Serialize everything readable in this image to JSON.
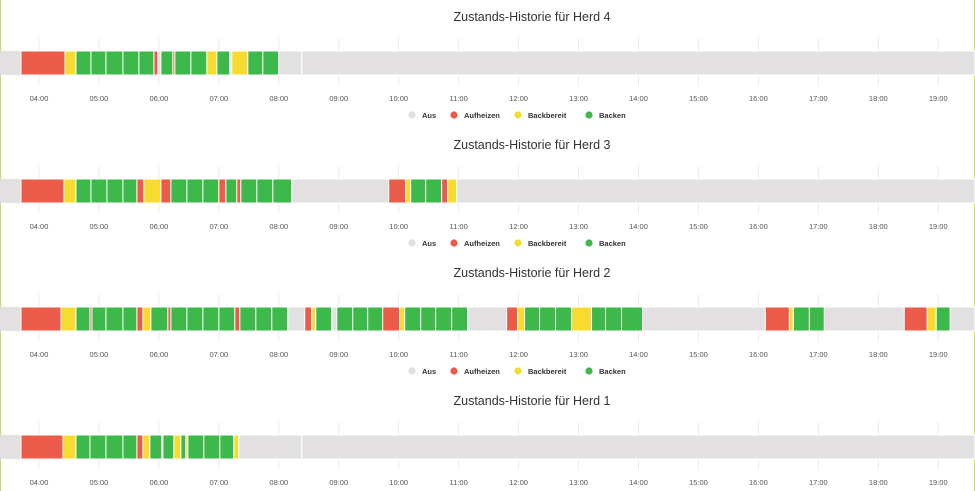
{
  "colors": {
    "Aus": "#e2e0e0",
    "Aufheizen": "#eb5b4a",
    "Backbereit": "#f6dc30",
    "Backen": "#3db84a",
    "separator": "#ffffff",
    "grid": "#ececec",
    "frame": "#c8dc6e"
  },
  "chart_data": [
    {
      "type": "timeline",
      "title": "Zustands-Historie für Herd 4",
      "x_ticks": [
        "04:00",
        "05:00",
        "06:00",
        "07:00",
        "08:00",
        "09:00",
        "10:00",
        "11:00",
        "12:00",
        "13:00",
        "14:00",
        "15:00",
        "16:00",
        "17:00",
        "18:00",
        "19:00"
      ],
      "x_range": [
        "03:40",
        "19:40"
      ],
      "legend": [
        "Aus",
        "Aufheizen",
        "Backbereit",
        "Backen"
      ],
      "segments": [
        {
          "start": "03:40",
          "end": "04:26",
          "state": "Aufheizen"
        },
        {
          "start": "04:26",
          "end": "04:37",
          "state": "Backbereit"
        },
        {
          "start": "04:37",
          "end": "04:52",
          "state": "Backen"
        },
        {
          "start": "04:52",
          "end": "05:07",
          "state": "Backen"
        },
        {
          "start": "05:07",
          "end": "05:24",
          "state": "Backen"
        },
        {
          "start": "05:24",
          "end": "05:40",
          "state": "Backen"
        },
        {
          "start": "05:40",
          "end": "05:55",
          "state": "Backen"
        },
        {
          "start": "05:55",
          "end": "05:59",
          "state": "Aufheizen"
        },
        {
          "start": "05:59",
          "end": "06:02",
          "state": "Aus"
        },
        {
          "start": "06:02",
          "end": "06:14",
          "state": "Backen"
        },
        {
          "start": "06:14",
          "end": "06:16",
          "state": "Aufheizen"
        },
        {
          "start": "06:16",
          "end": "06:32",
          "state": "Backen"
        },
        {
          "start": "06:32",
          "end": "06:48",
          "state": "Backen"
        },
        {
          "start": "06:48",
          "end": "06:58",
          "state": "Backbereit"
        },
        {
          "start": "06:58",
          "end": "07:11",
          "state": "Backen"
        },
        {
          "start": "07:11",
          "end": "07:13",
          "state": "Aus"
        },
        {
          "start": "07:13",
          "end": "07:29",
          "state": "Backbereit"
        },
        {
          "start": "07:29",
          "end": "07:44",
          "state": "Backen"
        },
        {
          "start": "07:44",
          "end": "08:00",
          "state": "Backen"
        },
        {
          "start": "08:00",
          "end": "08:23",
          "state": "Aus"
        },
        {
          "start": "08:23",
          "end": "19:40",
          "state": "Aus"
        }
      ]
    },
    {
      "type": "timeline",
      "title": "Zustands-Historie für Herd 3",
      "x_ticks": [
        "04:00",
        "05:00",
        "06:00",
        "07:00",
        "08:00",
        "09:00",
        "10:00",
        "11:00",
        "12:00",
        "13:00",
        "14:00",
        "15:00",
        "16:00",
        "17:00",
        "18:00",
        "19:00"
      ],
      "x_range": [
        "03:40",
        "19:40"
      ],
      "legend": [
        "Aus",
        "Aufheizen",
        "Backbereit",
        "Backen"
      ],
      "segments": [
        {
          "start": "03:40",
          "end": "04:25",
          "state": "Aufheizen"
        },
        {
          "start": "04:25",
          "end": "04:37",
          "state": "Backbereit"
        },
        {
          "start": "04:37",
          "end": "04:52",
          "state": "Backen"
        },
        {
          "start": "04:52",
          "end": "05:08",
          "state": "Backen"
        },
        {
          "start": "05:08",
          "end": "05:24",
          "state": "Backen"
        },
        {
          "start": "05:24",
          "end": "05:38",
          "state": "Backen"
        },
        {
          "start": "05:38",
          "end": "05:45",
          "state": "Aufheizen"
        },
        {
          "start": "05:45",
          "end": "06:02",
          "state": "Backbereit"
        },
        {
          "start": "06:02",
          "end": "06:12",
          "state": "Aufheizen"
        },
        {
          "start": "06:12",
          "end": "06:28",
          "state": "Backen"
        },
        {
          "start": "06:28",
          "end": "06:44",
          "state": "Backen"
        },
        {
          "start": "06:44",
          "end": "07:00",
          "state": "Backen"
        },
        {
          "start": "07:00",
          "end": "07:07",
          "state": "Aufheizen"
        },
        {
          "start": "07:07",
          "end": "07:18",
          "state": "Backen"
        },
        {
          "start": "07:18",
          "end": "07:22",
          "state": "Aufheizen"
        },
        {
          "start": "07:22",
          "end": "07:38",
          "state": "Backen"
        },
        {
          "start": "07:38",
          "end": "07:54",
          "state": "Backen"
        },
        {
          "start": "07:54",
          "end": "08:13",
          "state": "Backen"
        },
        {
          "start": "08:13",
          "end": "09:50",
          "state": "Aus"
        },
        {
          "start": "09:50",
          "end": "10:07",
          "state": "Aufheizen"
        },
        {
          "start": "10:07",
          "end": "10:12",
          "state": "Backbereit"
        },
        {
          "start": "10:12",
          "end": "10:27",
          "state": "Backen"
        },
        {
          "start": "10:27",
          "end": "10:43",
          "state": "Backen"
        },
        {
          "start": "10:43",
          "end": "10:49",
          "state": "Aufheizen"
        },
        {
          "start": "10:49",
          "end": "10:58",
          "state": "Backbereit"
        },
        {
          "start": "10:58",
          "end": "19:40",
          "state": "Aus"
        }
      ]
    },
    {
      "type": "timeline",
      "title": "Zustands-Historie für Herd 2",
      "x_ticks": [
        "04:00",
        "05:00",
        "06:00",
        "07:00",
        "08:00",
        "09:00",
        "10:00",
        "11:00",
        "12:00",
        "13:00",
        "14:00",
        "15:00",
        "16:00",
        "17:00",
        "18:00",
        "19:00"
      ],
      "x_range": [
        "03:40",
        "19:40"
      ],
      "legend": [
        "Aus",
        "Aufheizen",
        "Backbereit",
        "Backen"
      ],
      "segments": [
        {
          "start": "03:40",
          "end": "04:22",
          "state": "Aufheizen"
        },
        {
          "start": "04:22",
          "end": "04:37",
          "state": "Backbereit"
        },
        {
          "start": "04:37",
          "end": "04:51",
          "state": "Backen"
        },
        {
          "start": "04:51",
          "end": "04:53",
          "state": "Aufheizen"
        },
        {
          "start": "04:53",
          "end": "05:07",
          "state": "Backen"
        },
        {
          "start": "05:07",
          "end": "05:24",
          "state": "Backen"
        },
        {
          "start": "05:24",
          "end": "05:38",
          "state": "Backen"
        },
        {
          "start": "05:38",
          "end": "05:44",
          "state": "Aufheizen"
        },
        {
          "start": "05:44",
          "end": "05:52",
          "state": "Backbereit"
        },
        {
          "start": "05:52",
          "end": "06:09",
          "state": "Backen"
        },
        {
          "start": "06:09",
          "end": "06:12",
          "state": "Aufheizen"
        },
        {
          "start": "06:12",
          "end": "06:28",
          "state": "Backen"
        },
        {
          "start": "06:28",
          "end": "06:44",
          "state": "Backen"
        },
        {
          "start": "06:44",
          "end": "07:00",
          "state": "Backen"
        },
        {
          "start": "07:00",
          "end": "07:16",
          "state": "Backen"
        },
        {
          "start": "07:16",
          "end": "07:21",
          "state": "Aufheizen"
        },
        {
          "start": "07:21",
          "end": "07:37",
          "state": "Backen"
        },
        {
          "start": "07:37",
          "end": "07:53",
          "state": "Backen"
        },
        {
          "start": "07:53",
          "end": "08:09",
          "state": "Backen"
        },
        {
          "start": "08:09",
          "end": "08:26",
          "state": "Aus"
        },
        {
          "start": "08:26",
          "end": "08:33",
          "state": "Aufheizen"
        },
        {
          "start": "08:33",
          "end": "08:37",
          "state": "Backbereit"
        },
        {
          "start": "08:37",
          "end": "08:53",
          "state": "Backen"
        },
        {
          "start": "08:53",
          "end": "08:58",
          "state": "Aus"
        },
        {
          "start": "08:58",
          "end": "09:14",
          "state": "Backen"
        },
        {
          "start": "09:14",
          "end": "09:29",
          "state": "Backen"
        },
        {
          "start": "09:29",
          "end": "09:44",
          "state": "Backen"
        },
        {
          "start": "09:44",
          "end": "10:01",
          "state": "Aufheizen"
        },
        {
          "start": "10:01",
          "end": "10:06",
          "state": "Backbereit"
        },
        {
          "start": "10:06",
          "end": "10:22",
          "state": "Backen"
        },
        {
          "start": "10:22",
          "end": "10:37",
          "state": "Backen"
        },
        {
          "start": "10:37",
          "end": "10:53",
          "state": "Backen"
        },
        {
          "start": "10:53",
          "end": "11:09",
          "state": "Backen"
        },
        {
          "start": "11:09",
          "end": "11:48",
          "state": "Aus"
        },
        {
          "start": "11:48",
          "end": "11:59",
          "state": "Aufheizen"
        },
        {
          "start": "11:59",
          "end": "12:06",
          "state": "Backbereit"
        },
        {
          "start": "12:06",
          "end": "12:21",
          "state": "Backen"
        },
        {
          "start": "12:21",
          "end": "12:37",
          "state": "Backen"
        },
        {
          "start": "12:37",
          "end": "12:53",
          "state": "Backen"
        },
        {
          "start": "12:53",
          "end": "13:13",
          "state": "Backbereit"
        },
        {
          "start": "13:13",
          "end": "13:27",
          "state": "Backen"
        },
        {
          "start": "13:27",
          "end": "13:43",
          "state": "Backen"
        },
        {
          "start": "13:43",
          "end": "14:04",
          "state": "Backen"
        },
        {
          "start": "14:04",
          "end": "16:07",
          "state": "Aus"
        },
        {
          "start": "16:07",
          "end": "16:31",
          "state": "Aufheizen"
        },
        {
          "start": "16:31",
          "end": "16:35",
          "state": "Backbereit"
        },
        {
          "start": "16:35",
          "end": "16:51",
          "state": "Backen"
        },
        {
          "start": "16:51",
          "end": "17:06",
          "state": "Backen"
        },
        {
          "start": "17:06",
          "end": "18:26",
          "state": "Aus"
        },
        {
          "start": "18:26",
          "end": "18:49",
          "state": "Aufheizen"
        },
        {
          "start": "18:49",
          "end": "18:58",
          "state": "Backbereit"
        },
        {
          "start": "18:58",
          "end": "19:12",
          "state": "Backen"
        },
        {
          "start": "19:12",
          "end": "19:40",
          "state": "Aus"
        }
      ]
    },
    {
      "type": "timeline",
      "title": "Zustands-Historie für Herd 1",
      "x_ticks": [
        "04:00",
        "05:00",
        "06:00",
        "07:00",
        "08:00",
        "09:00",
        "10:00",
        "11:00",
        "12:00",
        "13:00",
        "14:00",
        "15:00",
        "16:00",
        "17:00",
        "18:00",
        "19:00"
      ],
      "x_range": [
        "03:40",
        "19:40"
      ],
      "legend": [],
      "segments": [
        {
          "start": "03:40",
          "end": "04:24",
          "state": "Aufheizen"
        },
        {
          "start": "04:24",
          "end": "04:37",
          "state": "Backbereit"
        },
        {
          "start": "04:37",
          "end": "04:51",
          "state": "Backen"
        },
        {
          "start": "04:51",
          "end": "05:07",
          "state": "Backen"
        },
        {
          "start": "05:07",
          "end": "05:24",
          "state": "Backen"
        },
        {
          "start": "05:24",
          "end": "05:38",
          "state": "Backen"
        },
        {
          "start": "05:38",
          "end": "05:44",
          "state": "Aufheizen"
        },
        {
          "start": "05:44",
          "end": "05:51",
          "state": "Backbereit"
        },
        {
          "start": "05:51",
          "end": "06:03",
          "state": "Backen"
        },
        {
          "start": "06:03",
          "end": "06:04",
          "state": "Aufheizen"
        },
        {
          "start": "06:04",
          "end": "06:15",
          "state": "Backen"
        },
        {
          "start": "06:15",
          "end": "06:22",
          "state": "Backbereit"
        },
        {
          "start": "06:22",
          "end": "06:27",
          "state": "Backen"
        },
        {
          "start": "06:27",
          "end": "06:29",
          "state": "Backbereit"
        },
        {
          "start": "06:29",
          "end": "06:45",
          "state": "Backen"
        },
        {
          "start": "06:45",
          "end": "07:01",
          "state": "Backen"
        },
        {
          "start": "07:01",
          "end": "07:15",
          "state": "Backen"
        },
        {
          "start": "07:15",
          "end": "07:20",
          "state": "Backbereit"
        },
        {
          "start": "07:20",
          "end": "08:23",
          "state": "Aus"
        },
        {
          "start": "08:23",
          "end": "19:40",
          "state": "Aus"
        }
      ]
    }
  ]
}
